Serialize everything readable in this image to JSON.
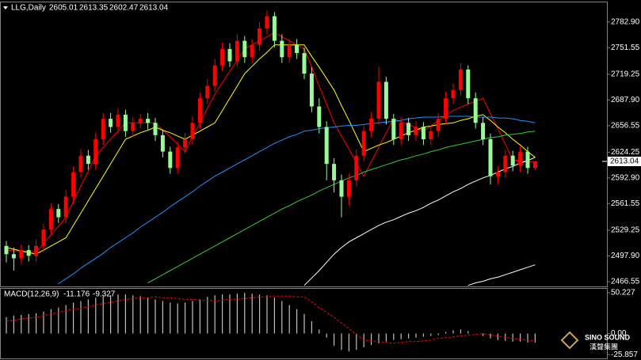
{
  "chart_data": [
    {
      "type": "candlestick",
      "title": "LLG,Daily",
      "grid": false,
      "bull_color": "#ff0000",
      "bear_color": "#98fb98",
      "open": [
        2510,
        2500,
        2495,
        2505,
        2498,
        2510,
        2530,
        2555,
        2545,
        2570,
        2600,
        2620,
        2610,
        2640,
        2665,
        2655,
        2670,
        2650,
        2660,
        2665,
        2660,
        2645,
        2625,
        2605,
        2630,
        2640,
        2660,
        2690,
        2705,
        2730,
        2750,
        2735,
        2760,
        2740,
        2755,
        2775,
        2790,
        2760,
        2740,
        2755,
        2745,
        2720,
        2680,
        2655,
        2610,
        2590,
        2570,
        2590,
        2620,
        2650,
        2665,
        2710,
        2665,
        2640,
        2660,
        2645,
        2655,
        2640,
        2650,
        2665,
        2690,
        2700,
        2725,
        2690,
        2660,
        2640,
        2595,
        2600,
        2620,
        2608,
        2625,
        2605.01
      ],
      "high": [
        2516,
        2508,
        2512,
        2511,
        2518,
        2537,
        2562,
        2561,
        2578,
        2607,
        2628,
        2627,
        2648,
        2672,
        2672,
        2678,
        2676,
        2667,
        2671,
        2672,
        2666,
        2652,
        2631,
        2637,
        2648,
        2668,
        2697,
        2713,
        2738,
        2758,
        2757,
        2768,
        2766,
        2762,
        2783,
        2797,
        2795,
        2768,
        2762,
        2762,
        2752,
        2728,
        2690,
        2662,
        2617,
        2597,
        2598,
        2628,
        2657,
        2673,
        2728,
        2716,
        2671,
        2667,
        2666,
        2662,
        2661,
        2657,
        2672,
        2698,
        2708,
        2733,
        2730,
        2697,
        2667,
        2647,
        2607,
        2627,
        2626,
        2632,
        2631,
        2613.35
      ],
      "low": [
        2490,
        2480,
        2488,
        2491,
        2491,
        2503,
        2523,
        2538,
        2538,
        2562,
        2593,
        2603,
        2603,
        2633,
        2648,
        2648,
        2643,
        2643,
        2653,
        2652,
        2638,
        2618,
        2598,
        2598,
        2623,
        2633,
        2653,
        2683,
        2698,
        2723,
        2728,
        2728,
        2733,
        2733,
        2748,
        2768,
        2752,
        2733,
        2733,
        2738,
        2713,
        2673,
        2647,
        2590,
        2575,
        2545,
        2560,
        2583,
        2613,
        2643,
        2658,
        2658,
        2633,
        2633,
        2638,
        2638,
        2633,
        2633,
        2643,
        2658,
        2683,
        2693,
        2683,
        2653,
        2633,
        2585,
        2585,
        2593,
        2601,
        2600,
        2598,
        2602.47
      ],
      "close": [
        2500,
        2495,
        2505,
        2498,
        2510,
        2530,
        2555,
        2545,
        2570,
        2600,
        2620,
        2610,
        2640,
        2665,
        2655,
        2670,
        2650,
        2660,
        2665,
        2660,
        2645,
        2625,
        2605,
        2630,
        2640,
        2660,
        2690,
        2705,
        2730,
        2750,
        2735,
        2760,
        2740,
        2755,
        2775,
        2790,
        2760,
        2740,
        2755,
        2745,
        2720,
        2680,
        2655,
        2610,
        2590,
        2570,
        2590,
        2620,
        2650,
        2665,
        2710,
        2665,
        2640,
        2660,
        2645,
        2655,
        2640,
        2650,
        2665,
        2690,
        2700,
        2725,
        2690,
        2660,
        2640,
        2595,
        2600,
        2620,
        2608,
        2625,
        2605,
        2613.04
      ],
      "lines": [
        {
          "color": "#ff0000",
          "values": [
            2505,
            2504,
            2504,
            2503,
            2502,
            2513,
            2524,
            2534,
            2545,
            2564,
            2583,
            2601,
            2620,
            2630,
            2640,
            2650,
            2660,
            2660,
            2660,
            2660,
            2660,
            2651,
            2643,
            2634,
            2625,
            2643,
            2660,
            2678,
            2695,
            2709,
            2723,
            2736,
            2750,
            2755,
            2760,
            2765,
            2770,
            2765,
            2760,
            2755,
            2750,
            2728,
            2705,
            2683,
            2660,
            2644,
            2628,
            2611,
            2595,
            2613,
            2630,
            2648,
            2665,
            2661,
            2658,
            2654,
            2650,
            2656,
            2663,
            2669,
            2675,
            2679,
            2683,
            2686,
            2690,
            2671,
            2653,
            2634,
            2615,
            2614,
            2613,
            2612
          ]
        },
        {
          "color": "#ffff00",
          "values": [
            2508,
            2506,
            2504,
            2502,
            2500,
            2505,
            2510,
            2515,
            2520,
            2535,
            2550,
            2565,
            2580,
            2595,
            2610,
            2625,
            2640,
            2644,
            2648,
            2651,
            2655,
            2651,
            2648,
            2644,
            2640,
            2645,
            2650,
            2655,
            2660,
            2675,
            2690,
            2705,
            2720,
            2729,
            2738,
            2746,
            2755,
            2755,
            2755,
            2755,
            2755,
            2741,
            2728,
            2714,
            2700,
            2681,
            2663,
            2644,
            2625,
            2629,
            2633,
            2636,
            2640,
            2644,
            2648,
            2651,
            2655,
            2656,
            2658,
            2659,
            2660,
            2663,
            2665,
            2668,
            2670,
            2663,
            2655,
            2648,
            2640,
            2633,
            2625,
            2618
          ]
        },
        {
          "color": "#1e90ff",
          "values": [
            null,
            null,
            null,
            null,
            null,
            null,
            null,
            2464,
            2470,
            2476,
            2483,
            2489,
            2495,
            2501,
            2508,
            2514,
            2520,
            2526,
            2533,
            2539,
            2545,
            2551,
            2558,
            2564,
            2570,
            2576,
            2583,
            2589,
            2595,
            2600,
            2605,
            2610,
            2615,
            2620,
            2625,
            2630,
            2635,
            2639,
            2643,
            2646,
            2650,
            2651,
            2653,
            2654,
            2655,
            2656,
            2657,
            2657,
            2658,
            2659,
            2660,
            2661,
            2662,
            2663,
            2665,
            2666,
            2667,
            2667,
            2667,
            2668,
            2668,
            2668,
            2668,
            2667,
            2667,
            2667,
            2666,
            2666,
            2665,
            2663,
            2662,
            2660
          ]
        },
        {
          "color": "#32cd32",
          "values": [
            null,
            null,
            null,
            null,
            null,
            null,
            null,
            null,
            null,
            null,
            null,
            null,
            null,
            null,
            null,
            null,
            null,
            null,
            null,
            2465,
            2470,
            2475,
            2480,
            2485,
            2490,
            2495,
            2500,
            2505,
            2510,
            2515,
            2520,
            2525,
            2530,
            2535,
            2540,
            2545,
            2550,
            2555,
            2559,
            2564,
            2568,
            2572,
            2577,
            2581,
            2585,
            2589,
            2593,
            2596,
            2600,
            2603,
            2606,
            2609,
            2612,
            2615,
            2617,
            2620,
            2622,
            2625,
            2627,
            2630,
            2632,
            2634,
            2636,
            2638,
            2640,
            2642,
            2643,
            2645,
            2646,
            2647,
            2649,
            2650
          ]
        },
        {
          "color": "#ffffff",
          "values": [
            null,
            null,
            null,
            null,
            null,
            null,
            null,
            null,
            null,
            null,
            null,
            null,
            null,
            null,
            null,
            null,
            null,
            null,
            null,
            null,
            null,
            null,
            null,
            null,
            null,
            null,
            null,
            null,
            null,
            null,
            null,
            null,
            null,
            null,
            null,
            null,
            null,
            null,
            null,
            null,
            2462,
            2471,
            2480,
            2490,
            2500,
            2508,
            2515,
            2520,
            2525,
            2530,
            2535,
            2539,
            2542,
            2546,
            2550,
            2553,
            2557,
            2562,
            2566,
            2571,
            2576,
            2580,
            2585,
            2589,
            2593,
            2596,
            2600,
            2604,
            2607,
            2611,
            2614,
            2618
          ]
        },
        {
          "color": "#ffffff",
          "values": [
            null,
            null,
            null,
            null,
            null,
            null,
            null,
            null,
            null,
            null,
            null,
            null,
            null,
            null,
            null,
            null,
            null,
            null,
            null,
            null,
            null,
            null,
            null,
            null,
            null,
            null,
            null,
            null,
            null,
            null,
            null,
            null,
            null,
            null,
            null,
            null,
            null,
            null,
            null,
            null,
            null,
            null,
            null,
            null,
            null,
            null,
            null,
            null,
            null,
            null,
            null,
            null,
            null,
            null,
            null,
            null,
            null,
            null,
            null,
            null,
            null,
            null,
            2462,
            2465,
            2467,
            2470,
            2472,
            2475,
            2478,
            2481,
            2484,
            2487
          ]
        }
      ],
      "ylim": [
        2460.7,
        2802
      ],
      "yticks": [
        {
          "value": 2782.9,
          "label": "2782.90"
        },
        2751.55,
        2719.25,
        {
          "value": 2687.9,
          "label": "2687.90"
        },
        2656.55,
        2624.25,
        {
          "value": 2592.9,
          "label": "2592.90"
        },
        2561.55,
        2529.25,
        {
          "value": 2497.9,
          "label": "2497.90"
        },
        2466.55
      ]
    },
    {
      "type": "macd",
      "title": "MACD(12,26,9)",
      "series": [
        {
          "color": "#c0c0c0",
          "values": [
            20,
            22,
            23,
            24,
            25,
            27,
            30,
            32,
            35,
            38,
            40,
            42,
            44,
            46,
            47,
            48,
            48,
            47,
            46,
            44,
            42,
            40,
            38,
            37,
            38,
            40,
            42,
            45,
            47,
            48,
            48,
            49,
            50,
            49,
            48,
            47,
            44,
            40,
            35,
            30,
            24,
            15,
            5,
            -5,
            -15,
            -20,
            -22,
            -20,
            -17,
            -14,
            -12,
            -10,
            -8,
            -7,
            -6,
            -5,
            -4,
            -3,
            -2,
            2,
            4,
            5,
            3,
            0,
            -3,
            -6,
            -8,
            -9,
            -10,
            -10,
            -11,
            -11.176
          ]
        },
        {
          "color": "#ff0000",
          "values": [
            15,
            16,
            18,
            19,
            20,
            22,
            24,
            26,
            28,
            30,
            31,
            33,
            35,
            37,
            38,
            40,
            42,
            43,
            44,
            44,
            45,
            44,
            44,
            43,
            42,
            42,
            41,
            41,
            40,
            41,
            42,
            42,
            43,
            44,
            45,
            45,
            46,
            46,
            46,
            45,
            45,
            39,
            32,
            26,
            20,
            13,
            6,
            -1,
            -8,
            -9,
            -10,
            -11,
            -12,
            -11,
            -10,
            -10,
            -9,
            -8,
            -6,
            -5,
            -4,
            -3,
            -2,
            -1,
            0,
            -2,
            -3,
            -5,
            -6,
            -7,
            -8,
            -9.327
          ]
        }
      ],
      "ylim": [
        -30.6,
        54.97
      ],
      "yticks": [
        50.227,
        {
          "value": 0,
          "label": "0.00"
        },
        -25.857
      ],
      "watermark": {
        "brand": "SINO SOUND",
        "local": "漢聲集團"
      }
    }
  ]
}
